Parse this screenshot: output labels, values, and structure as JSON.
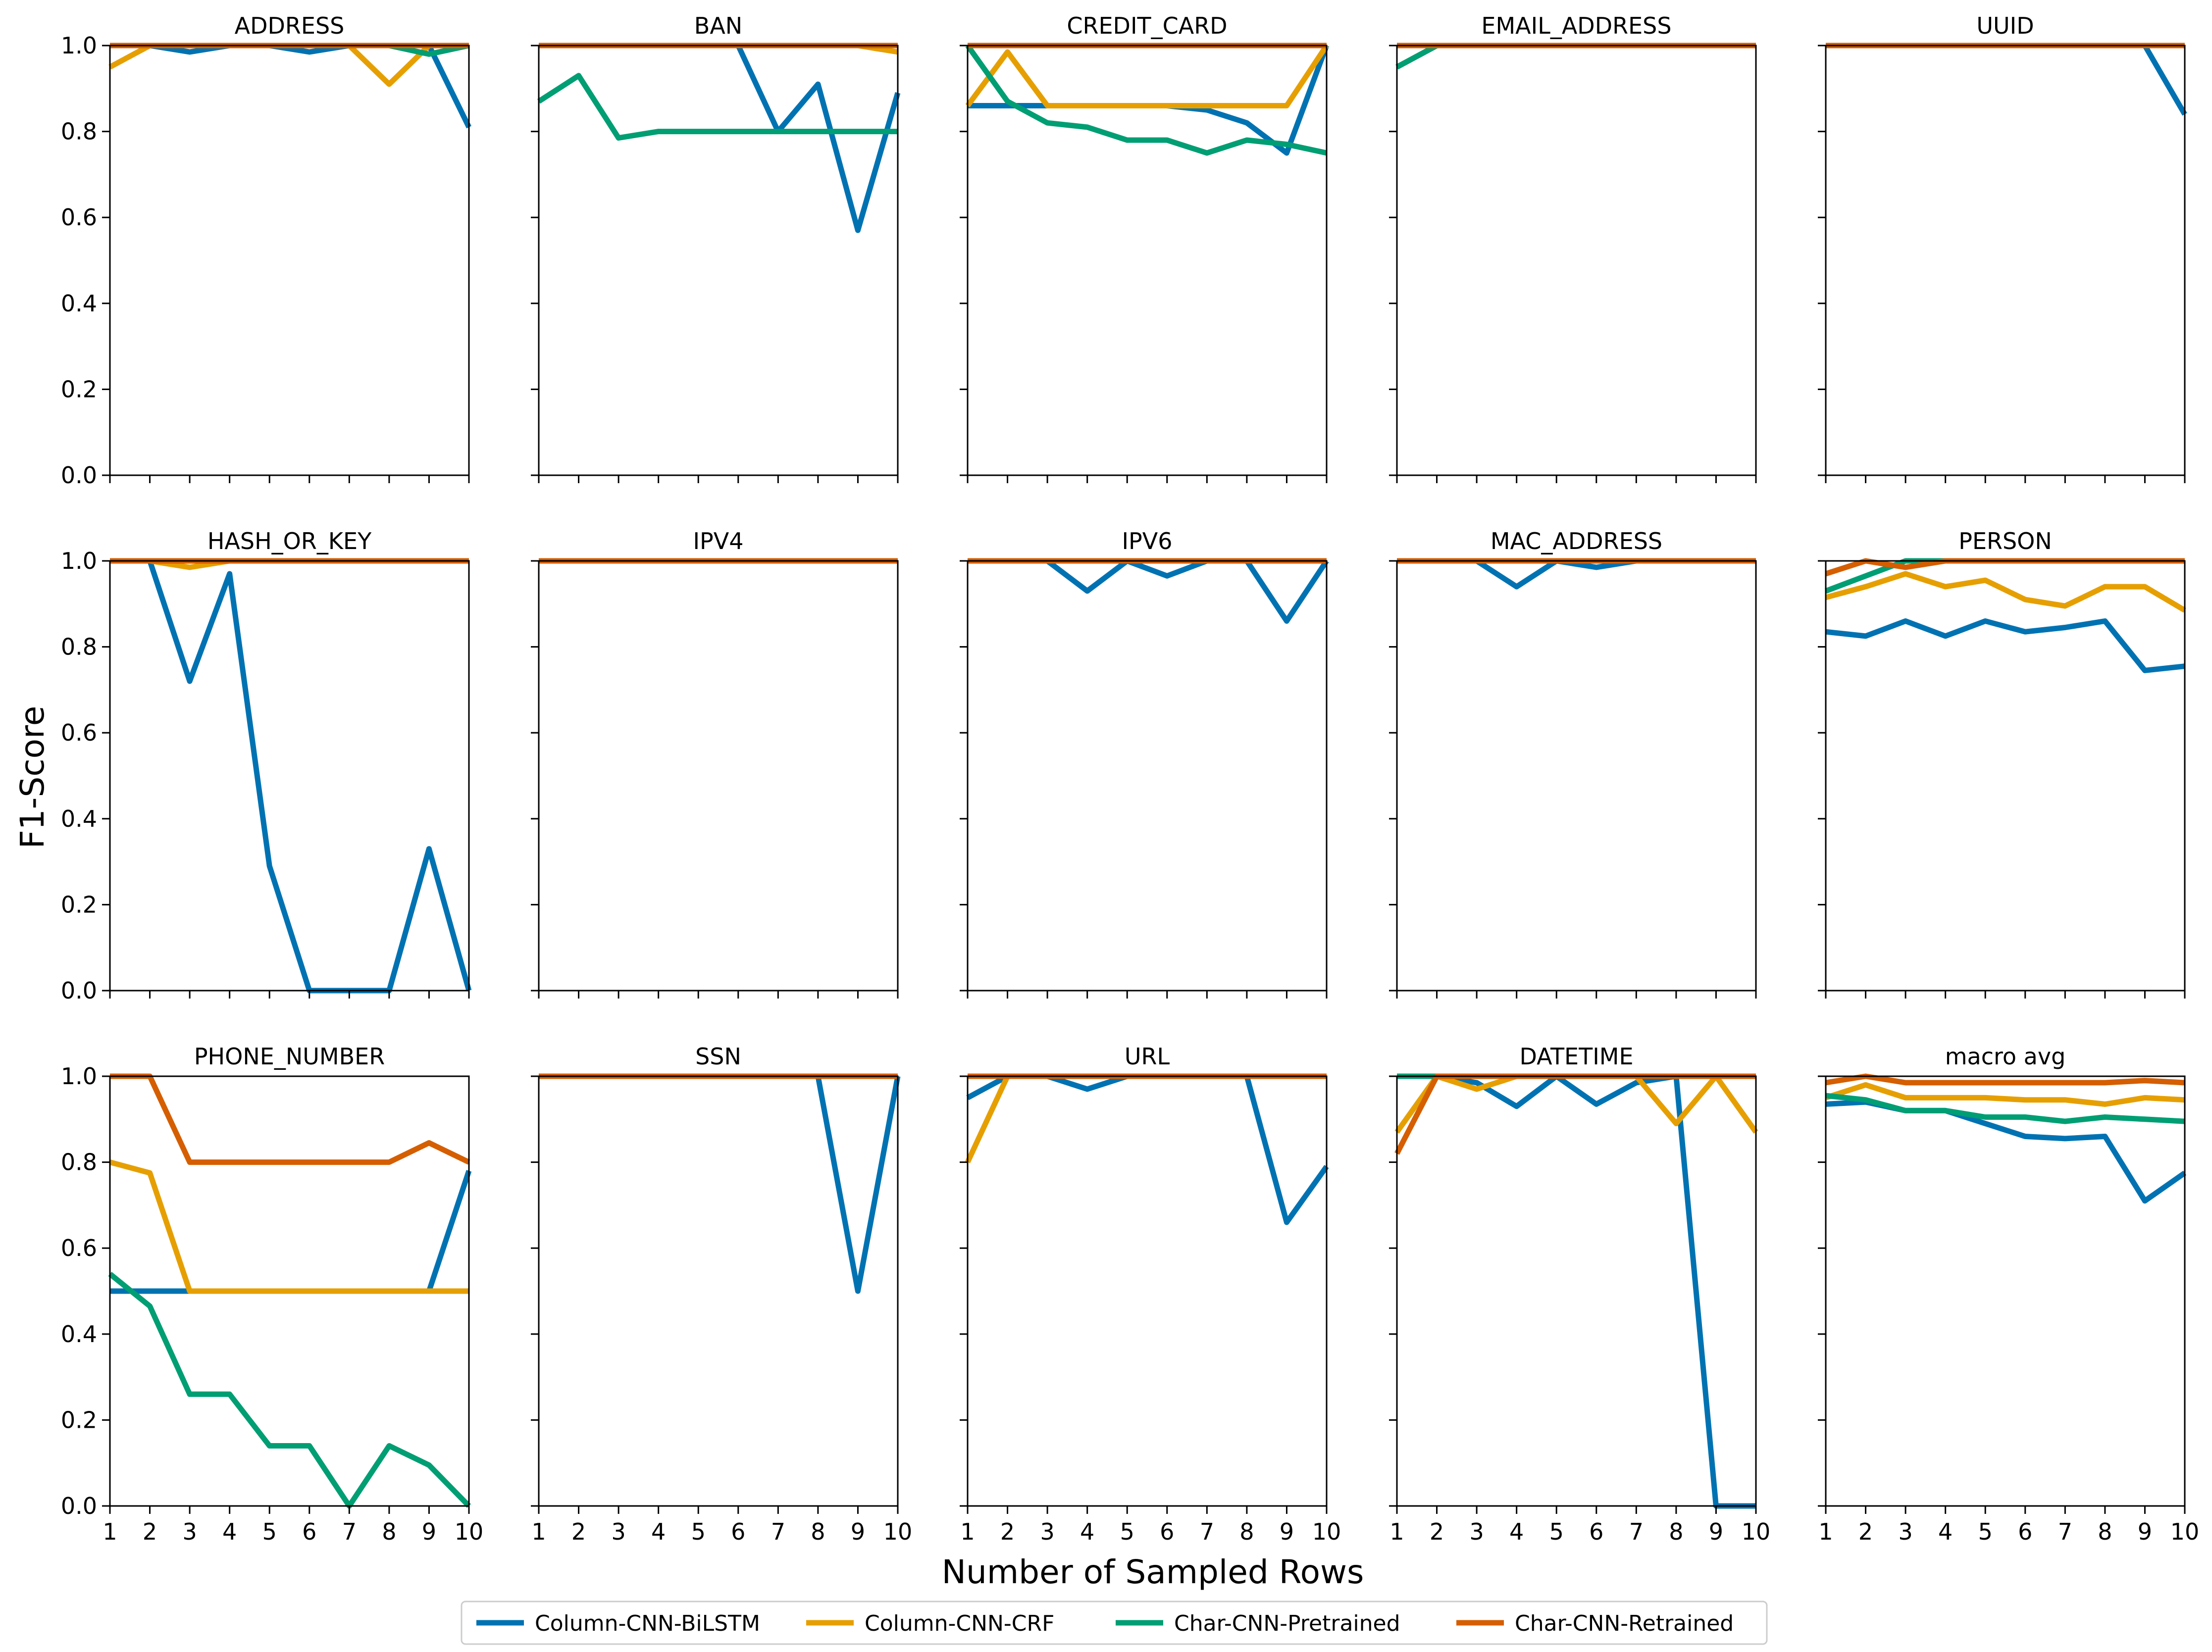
{
  "figure": {
    "ylabel": "F1-Score",
    "xlabel": "Number of Sampled Rows"
  },
  "legend": {
    "placement": "bottom-center",
    "entries": [
      {
        "name": "Column-CNN-BiLSTM",
        "color": "#0072B2"
      },
      {
        "name": "Column-CNN-CRF",
        "color": "#E69F00"
      },
      {
        "name": "Char-CNN-Pretrained",
        "color": "#009E73"
      },
      {
        "name": "Char-CNN-Retrained",
        "color": "#D55E00"
      }
    ]
  },
  "chart_data": {
    "type": "line",
    "layout": "3x5 small multiples, shared x and y axes",
    "x": [
      1,
      2,
      3,
      4,
      5,
      6,
      7,
      8,
      9,
      10
    ],
    "xlim": [
      1,
      10
    ],
    "ylim": [
      0,
      1
    ],
    "yticks": [
      "0.0",
      "0.2",
      "0.4",
      "0.6",
      "0.8",
      "1.0"
    ],
    "xticks": [
      "1",
      "2",
      "3",
      "4",
      "5",
      "6",
      "7",
      "8",
      "9",
      "10"
    ],
    "grid": false,
    "series_names": [
      "Column-CNN-BiLSTM",
      "Column-CNN-CRF",
      "Char-CNN-Pretrained",
      "Char-CNN-Retrained"
    ],
    "series_colors": [
      "#0072B2",
      "#E69F00",
      "#009E73",
      "#D55E00"
    ],
    "panels": [
      {
        "title": "ADDRESS",
        "series": [
          [
            1.0,
            1.0,
            0.985,
            1.0,
            1.0,
            0.985,
            1.0,
            1.0,
            1.0,
            0.81
          ],
          [
            0.95,
            1.0,
            1.0,
            1.0,
            1.0,
            1.0,
            1.0,
            0.91,
            1.0,
            1.0
          ],
          [
            1.0,
            1.0,
            1.0,
            1.0,
            1.0,
            1.0,
            1.0,
            1.0,
            0.98,
            1.0
          ],
          [
            1.0,
            1.0,
            1.0,
            1.0,
            1.0,
            1.0,
            1.0,
            1.0,
            1.0,
            1.0
          ]
        ]
      },
      {
        "title": "BAN",
        "series": [
          [
            1.0,
            1.0,
            1.0,
            1.0,
            1.0,
            1.0,
            0.8,
            0.91,
            0.57,
            0.89
          ],
          [
            1.0,
            1.0,
            1.0,
            1.0,
            1.0,
            1.0,
            1.0,
            1.0,
            1.0,
            0.985
          ],
          [
            0.87,
            0.93,
            0.785,
            0.8,
            0.8,
            0.8,
            0.8,
            0.8,
            0.8,
            0.8
          ],
          [
            1.0,
            1.0,
            1.0,
            1.0,
            1.0,
            1.0,
            1.0,
            1.0,
            1.0,
            1.0
          ]
        ]
      },
      {
        "title": "CREDIT_CARD",
        "series": [
          [
            0.86,
            0.86,
            0.86,
            0.86,
            0.86,
            0.86,
            0.85,
            0.82,
            0.75,
            1.0
          ],
          [
            0.86,
            0.985,
            0.86,
            0.86,
            0.86,
            0.86,
            0.86,
            0.86,
            0.86,
            1.0
          ],
          [
            1.0,
            0.87,
            0.82,
            0.81,
            0.78,
            0.78,
            0.75,
            0.78,
            0.77,
            0.75
          ],
          [
            1.0,
            1.0,
            1.0,
            1.0,
            1.0,
            1.0,
            1.0,
            1.0,
            1.0,
            1.0
          ]
        ]
      },
      {
        "title": "EMAIL_ADDRESS",
        "series": [
          [
            0.95,
            1.0,
            1.0,
            1.0,
            1.0,
            1.0,
            1.0,
            1.0,
            1.0,
            1.0
          ],
          [
            0.95,
            1.0,
            1.0,
            1.0,
            1.0,
            1.0,
            1.0,
            1.0,
            1.0,
            1.0
          ],
          [
            0.95,
            1.0,
            1.0,
            1.0,
            1.0,
            1.0,
            1.0,
            1.0,
            1.0,
            1.0
          ],
          [
            1.0,
            1.0,
            1.0,
            1.0,
            1.0,
            1.0,
            1.0,
            1.0,
            1.0,
            1.0
          ]
        ]
      },
      {
        "title": "UUID",
        "series": [
          [
            1.0,
            1.0,
            1.0,
            1.0,
            1.0,
            1.0,
            1.0,
            1.0,
            1.0,
            0.84
          ],
          [
            1.0,
            1.0,
            1.0,
            1.0,
            1.0,
            1.0,
            1.0,
            1.0,
            1.0,
            1.0
          ],
          [
            1.0,
            1.0,
            1.0,
            1.0,
            1.0,
            1.0,
            1.0,
            1.0,
            1.0,
            1.0
          ],
          [
            1.0,
            1.0,
            1.0,
            1.0,
            1.0,
            1.0,
            1.0,
            1.0,
            1.0,
            1.0
          ]
        ]
      },
      {
        "title": "HASH_OR_KEY",
        "series": [
          [
            1.0,
            1.0,
            0.72,
            0.97,
            0.29,
            0.0,
            0.0,
            0.0,
            0.33,
            0.0
          ],
          [
            1.0,
            1.0,
            0.985,
            1.0,
            1.0,
            1.0,
            1.0,
            1.0,
            1.0,
            1.0
          ],
          [
            1.0,
            1.0,
            1.0,
            1.0,
            1.0,
            1.0,
            1.0,
            1.0,
            1.0,
            1.0
          ],
          [
            1.0,
            1.0,
            1.0,
            1.0,
            1.0,
            1.0,
            1.0,
            1.0,
            1.0,
            1.0
          ]
        ]
      },
      {
        "title": "IPV4",
        "series": [
          [
            1.0,
            1.0,
            1.0,
            1.0,
            1.0,
            1.0,
            1.0,
            1.0,
            1.0,
            1.0
          ],
          [
            1.0,
            1.0,
            1.0,
            1.0,
            1.0,
            1.0,
            1.0,
            1.0,
            1.0,
            1.0
          ],
          [
            1.0,
            1.0,
            1.0,
            1.0,
            1.0,
            1.0,
            1.0,
            1.0,
            1.0,
            1.0
          ],
          [
            1.0,
            1.0,
            1.0,
            1.0,
            1.0,
            1.0,
            1.0,
            1.0,
            1.0,
            1.0
          ]
        ]
      },
      {
        "title": "IPV6",
        "series": [
          [
            1.0,
            1.0,
            1.0,
            0.93,
            1.0,
            0.965,
            1.0,
            1.0,
            0.86,
            1.0
          ],
          [
            1.0,
            1.0,
            1.0,
            1.0,
            1.0,
            1.0,
            1.0,
            1.0,
            1.0,
            1.0
          ],
          [
            1.0,
            1.0,
            1.0,
            1.0,
            1.0,
            1.0,
            1.0,
            1.0,
            1.0,
            1.0
          ],
          [
            1.0,
            1.0,
            1.0,
            1.0,
            1.0,
            1.0,
            1.0,
            1.0,
            1.0,
            1.0
          ]
        ]
      },
      {
        "title": "MAC_ADDRESS",
        "series": [
          [
            1.0,
            1.0,
            1.0,
            0.94,
            1.0,
            0.985,
            1.0,
            1.0,
            1.0,
            1.0
          ],
          [
            1.0,
            1.0,
            1.0,
            1.0,
            1.0,
            1.0,
            1.0,
            1.0,
            1.0,
            1.0
          ],
          [
            1.0,
            1.0,
            1.0,
            1.0,
            1.0,
            1.0,
            1.0,
            1.0,
            1.0,
            1.0
          ],
          [
            1.0,
            1.0,
            1.0,
            1.0,
            1.0,
            1.0,
            1.0,
            1.0,
            1.0,
            1.0
          ]
        ]
      },
      {
        "title": "PERSON",
        "series": [
          [
            0.835,
            0.825,
            0.86,
            0.825,
            0.86,
            0.835,
            0.845,
            0.86,
            0.745,
            0.755
          ],
          [
            0.915,
            0.94,
            0.97,
            0.94,
            0.955,
            0.91,
            0.895,
            0.94,
            0.94,
            0.885
          ],
          [
            0.93,
            0.965,
            1.0,
            1.0,
            1.0,
            1.0,
            1.0,
            1.0,
            1.0,
            1.0
          ],
          [
            0.97,
            1.0,
            0.985,
            1.0,
            1.0,
            1.0,
            1.0,
            1.0,
            1.0,
            1.0
          ]
        ]
      },
      {
        "title": "PHONE_NUMBER",
        "series": [
          [
            0.5,
            0.5,
            0.5,
            0.5,
            0.5,
            0.5,
            0.5,
            0.5,
            0.5,
            0.78
          ],
          [
            0.8,
            0.775,
            0.5,
            0.5,
            0.5,
            0.5,
            0.5,
            0.5,
            0.5,
            0.5
          ],
          [
            0.54,
            0.465,
            0.26,
            0.26,
            0.14,
            0.14,
            0.0,
            0.14,
            0.095,
            0.0
          ],
          [
            1.0,
            1.0,
            0.8,
            0.8,
            0.8,
            0.8,
            0.8,
            0.8,
            0.845,
            0.8
          ]
        ]
      },
      {
        "title": "SSN",
        "series": [
          [
            1.0,
            1.0,
            1.0,
            1.0,
            1.0,
            1.0,
            1.0,
            1.0,
            0.5,
            1.0
          ],
          [
            1.0,
            1.0,
            1.0,
            1.0,
            1.0,
            1.0,
            1.0,
            1.0,
            1.0,
            1.0
          ],
          [
            1.0,
            1.0,
            1.0,
            1.0,
            1.0,
            1.0,
            1.0,
            1.0,
            1.0,
            1.0
          ],
          [
            1.0,
            1.0,
            1.0,
            1.0,
            1.0,
            1.0,
            1.0,
            1.0,
            1.0,
            1.0
          ]
        ]
      },
      {
        "title": "URL",
        "series": [
          [
            0.95,
            1.0,
            1.0,
            0.97,
            1.0,
            1.0,
            1.0,
            1.0,
            0.66,
            0.79
          ],
          [
            0.8,
            1.0,
            1.0,
            1.0,
            1.0,
            1.0,
            1.0,
            1.0,
            1.0,
            1.0
          ],
          [
            1.0,
            1.0,
            1.0,
            1.0,
            1.0,
            1.0,
            1.0,
            1.0,
            1.0,
            1.0
          ],
          [
            1.0,
            1.0,
            1.0,
            1.0,
            1.0,
            1.0,
            1.0,
            1.0,
            1.0,
            1.0
          ]
        ]
      },
      {
        "title": "DATETIME",
        "series": [
          [
            1.0,
            1.0,
            0.985,
            0.93,
            1.0,
            0.935,
            0.985,
            1.0,
            0.0,
            0.0
          ],
          [
            0.87,
            1.0,
            0.97,
            1.0,
            1.0,
            1.0,
            1.0,
            0.89,
            1.0,
            0.87
          ],
          [
            1.0,
            1.0,
            1.0,
            1.0,
            1.0,
            1.0,
            1.0,
            1.0,
            1.0,
            1.0
          ],
          [
            0.82,
            1.0,
            1.0,
            1.0,
            1.0,
            1.0,
            1.0,
            1.0,
            1.0,
            1.0
          ]
        ]
      },
      {
        "title": "macro avg",
        "series": [
          [
            0.935,
            0.94,
            0.92,
            0.92,
            0.89,
            0.86,
            0.855,
            0.86,
            0.71,
            0.775
          ],
          [
            0.95,
            0.98,
            0.95,
            0.95,
            0.95,
            0.945,
            0.945,
            0.935,
            0.95,
            0.945
          ],
          [
            0.955,
            0.945,
            0.92,
            0.92,
            0.905,
            0.905,
            0.895,
            0.905,
            0.9,
            0.895
          ],
          [
            0.985,
            1.0,
            0.985,
            0.985,
            0.985,
            0.985,
            0.985,
            0.985,
            0.99,
            0.985
          ]
        ]
      }
    ]
  }
}
